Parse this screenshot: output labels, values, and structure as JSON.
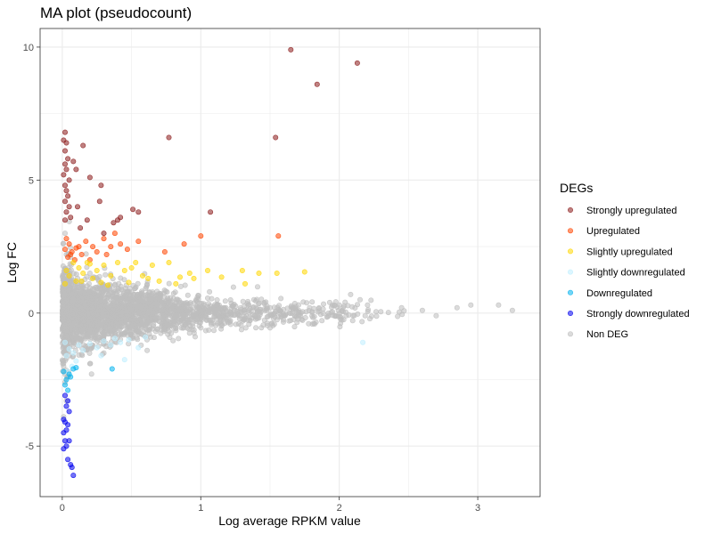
{
  "chart_data": {
    "type": "scatter",
    "title": "MA plot (pseudocount)",
    "xlabel": "Log average RPKM value",
    "ylabel": "Log FC",
    "xlim": [
      -0.16,
      3.45
    ],
    "ylim": [
      -6.9,
      10.7
    ],
    "x_ticks": [
      0,
      1,
      2,
      3
    ],
    "y_ticks": [
      -5,
      0,
      5,
      10
    ],
    "grid": true,
    "legend": {
      "title": "DEGs",
      "placement": "right",
      "entries": [
        {
          "label": "Strongly upregulated",
          "color": "#8b1a1a"
        },
        {
          "label": "Upregulated",
          "color": "#ff4500"
        },
        {
          "label": "Slightly upregulated",
          "color": "#ffd700"
        },
        {
          "label": "Slightly downregulated",
          "color": "#bfefff"
        },
        {
          "label": "Downregulated",
          "color": "#00b2ee"
        },
        {
          "label": "Strongly downregulated",
          "color": "#0000ee"
        },
        {
          "label": "Non DEG",
          "color": "#bebebe"
        }
      ]
    },
    "series": [
      {
        "name": "Non DEG",
        "color": "#bebebe",
        "bulk": true,
        "points": [
          [
            0.02,
            3.0
          ],
          [
            0.03,
            2.2
          ],
          [
            0.05,
            1.6
          ],
          [
            0.01,
            -2.0
          ],
          [
            0.02,
            -2.6
          ],
          [
            0.03,
            -3.3
          ],
          [
            0.01,
            -3.9
          ],
          [
            0.02,
            -2.3
          ],
          [
            3.15,
            0.3
          ],
          [
            3.25,
            0.1
          ],
          [
            2.95,
            0.3
          ],
          [
            2.85,
            0.2
          ],
          [
            2.15,
            0.5
          ],
          [
            2.45,
            0.2
          ],
          [
            2.6,
            0.1
          ],
          [
            2.7,
            -0.1
          ],
          [
            2.3,
            0.05
          ],
          [
            2.05,
            -0.1
          ],
          [
            1.95,
            0.3
          ],
          [
            0.2,
            -1.9
          ],
          [
            0.3,
            -1.5
          ]
        ]
      },
      {
        "name": "Strongly upregulated",
        "color": "#8b1a1a",
        "points": [
          [
            1.65,
            9.9
          ],
          [
            2.13,
            9.4
          ],
          [
            1.84,
            8.6
          ],
          [
            0.77,
            6.6
          ],
          [
            1.54,
            6.6
          ],
          [
            0.02,
            6.8
          ],
          [
            0.01,
            6.5
          ],
          [
            0.03,
            6.4
          ],
          [
            0.02,
            6.1
          ],
          [
            0.04,
            5.8
          ],
          [
            0.02,
            5.6
          ],
          [
            0.03,
            5.4
          ],
          [
            0.01,
            5.2
          ],
          [
            0.05,
            5.0
          ],
          [
            0.02,
            4.8
          ],
          [
            0.03,
            4.6
          ],
          [
            0.04,
            4.4
          ],
          [
            0.02,
            4.2
          ],
          [
            0.05,
            4.0
          ],
          [
            0.03,
            3.8
          ],
          [
            0.06,
            3.6
          ],
          [
            0.02,
            3.5
          ],
          [
            0.08,
            5.7
          ],
          [
            0.1,
            5.4
          ],
          [
            0.15,
            6.3
          ],
          [
            0.2,
            5.1
          ],
          [
            0.28,
            4.8
          ],
          [
            0.27,
            4.2
          ],
          [
            0.11,
            4.0
          ],
          [
            0.18,
            3.5
          ],
          [
            0.13,
            3.2
          ],
          [
            0.4,
            3.5
          ],
          [
            0.42,
            3.6
          ],
          [
            0.51,
            3.9
          ],
          [
            0.55,
            3.8
          ],
          [
            0.37,
            3.4
          ],
          [
            1.07,
            3.8
          ],
          [
            0.3,
            3.0
          ]
        ]
      },
      {
        "name": "Upregulated",
        "color": "#ff4500",
        "points": [
          [
            1.56,
            2.9
          ],
          [
            1.0,
            2.9
          ],
          [
            0.88,
            2.6
          ],
          [
            0.55,
            2.7
          ],
          [
            0.42,
            2.6
          ],
          [
            0.38,
            3.0
          ],
          [
            0.3,
            2.8
          ],
          [
            0.35,
            2.5
          ],
          [
            0.22,
            2.5
          ],
          [
            0.17,
            2.7
          ],
          [
            0.12,
            2.5
          ],
          [
            0.25,
            2.3
          ],
          [
            0.03,
            2.8
          ],
          [
            0.05,
            2.6
          ],
          [
            0.02,
            2.4
          ],
          [
            0.06,
            2.2
          ],
          [
            0.04,
            2.1
          ],
          [
            0.07,
            2.3
          ],
          [
            0.09,
            2.0
          ],
          [
            0.14,
            2.2
          ],
          [
            0.74,
            2.3
          ],
          [
            0.47,
            2.4
          ],
          [
            0.32,
            2.2
          ],
          [
            0.2,
            2.0
          ],
          [
            0.1,
            2.45
          ]
        ]
      },
      {
        "name": "Slightly upregulated",
        "color": "#ffd700",
        "points": [
          [
            1.75,
            1.55
          ],
          [
            1.55,
            1.5
          ],
          [
            1.42,
            1.5
          ],
          [
            1.3,
            1.6
          ],
          [
            1.15,
            1.35
          ],
          [
            1.05,
            1.6
          ],
          [
            0.92,
            1.5
          ],
          [
            0.77,
            1.9
          ],
          [
            0.65,
            1.8
          ],
          [
            0.53,
            1.9
          ],
          [
            0.5,
            1.7
          ],
          [
            0.45,
            1.6
          ],
          [
            0.62,
            1.3
          ],
          [
            0.7,
            1.2
          ],
          [
            0.82,
            1.1
          ],
          [
            0.95,
            1.3
          ],
          [
            1.32,
            1.1
          ],
          [
            0.4,
            1.9
          ],
          [
            0.35,
            1.4
          ],
          [
            0.3,
            1.8
          ],
          [
            0.25,
            1.6
          ],
          [
            0.22,
            1.3
          ],
          [
            0.18,
            1.9
          ],
          [
            0.15,
            1.5
          ],
          [
            0.12,
            1.7
          ],
          [
            0.1,
            1.2
          ],
          [
            0.08,
            1.9
          ],
          [
            0.05,
            1.4
          ],
          [
            0.03,
            1.6
          ],
          [
            0.02,
            1.1
          ],
          [
            0.14,
            1.2
          ],
          [
            0.28,
            1.15
          ],
          [
            0.48,
            1.15
          ],
          [
            0.58,
            1.4
          ],
          [
            0.85,
            1.35
          ],
          [
            0.2,
            1.85
          ],
          [
            0.33,
            1.05
          ]
        ]
      },
      {
        "name": "Slightly downregulated",
        "color": "#bfefff",
        "points": [
          [
            2.17,
            -1.1
          ],
          [
            0.6,
            -0.9
          ],
          [
            0.48,
            -1.0
          ],
          [
            0.42,
            -1.1
          ],
          [
            0.35,
            -1.2
          ],
          [
            0.3,
            -1.05
          ],
          [
            0.25,
            -1.3
          ],
          [
            0.2,
            -1.15
          ],
          [
            0.15,
            -1.4
          ],
          [
            0.12,
            -1.2
          ],
          [
            0.08,
            -1.5
          ],
          [
            0.05,
            -1.35
          ],
          [
            0.03,
            -1.6
          ],
          [
            0.02,
            -1.1
          ],
          [
            0.1,
            -1.8
          ],
          [
            0.07,
            -2.0
          ],
          [
            0.04,
            -2.2
          ],
          [
            0.45,
            -1.75
          ],
          [
            0.28,
            -1.6
          ],
          [
            0.55,
            -1.3
          ],
          [
            0.38,
            -0.95
          ]
        ]
      },
      {
        "name": "Downregulated",
        "color": "#00b2ee",
        "points": [
          [
            0.36,
            -2.1
          ],
          [
            0.1,
            -2.05
          ],
          [
            0.08,
            -2.1
          ],
          [
            0.05,
            -2.3
          ],
          [
            0.03,
            -2.5
          ],
          [
            0.02,
            -2.7
          ],
          [
            0.04,
            -2.9
          ],
          [
            0.06,
            -2.4
          ],
          [
            0.01,
            -2.2
          ]
        ]
      },
      {
        "name": "Strongly downregulated",
        "color": "#0000ee",
        "points": [
          [
            0.02,
            -3.1
          ],
          [
            0.04,
            -3.3
          ],
          [
            0.03,
            -3.5
          ],
          [
            0.05,
            -3.7
          ],
          [
            0.01,
            -4.0
          ],
          [
            0.02,
            -4.1
          ],
          [
            0.04,
            -4.2
          ],
          [
            0.03,
            -4.4
          ],
          [
            0.01,
            -4.5
          ],
          [
            0.05,
            -4.8
          ],
          [
            0.02,
            -4.8
          ],
          [
            0.03,
            -5.0
          ],
          [
            0.01,
            -5.1
          ],
          [
            0.04,
            -5.5
          ],
          [
            0.06,
            -5.7
          ],
          [
            0.07,
            -5.8
          ],
          [
            0.08,
            -6.1
          ]
        ]
      }
    ]
  }
}
